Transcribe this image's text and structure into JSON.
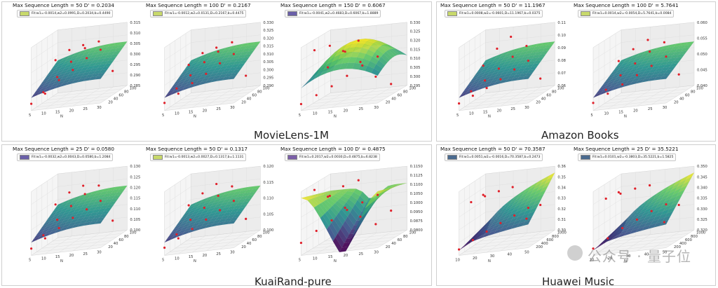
{
  "groups": [
    {
      "title": "MovieLens-1M"
    },
    {
      "title": "Amazon Books"
    },
    {
      "title": "KuaiRand-pure"
    },
    {
      "title": "Huawei Music"
    }
  ],
  "watermark": {
    "text": "公众号 · 量子位"
  },
  "chart_data": [
    {
      "type": "surface3d",
      "title": "Max Sequence Length = 50  D' = 0.2034",
      "legend": "Fit:w1=-0.0014,w2=0.0991,D=0.2034,b=0.4490",
      "colormap": "viridis",
      "x_ticks": [
        "5",
        "10",
        "15",
        "20",
        "25",
        "30"
      ],
      "x_label": "N",
      "y_ticks": [
        "20",
        "40",
        "60",
        "80",
        "100"
      ],
      "z_ticks": [
        "0.285",
        "0.290",
        "0.295",
        "0.300",
        "0.305",
        "0.310",
        "0.315"
      ],
      "surface_shape": "saddle",
      "points_z": [
        0.286,
        0.291,
        0.298,
        0.303,
        0.309,
        0.313,
        0.288,
        0.296,
        0.304,
        0.311,
        0.314,
        0.296,
        0.302,
        0.307,
        0.309
      ]
    },
    {
      "type": "surface3d",
      "title": "Max Sequence Length = 100  D' = 0.2167",
      "legend": "Fit:w1=-0.0012,w2=0.0131,D=0.2167,b=0.4475",
      "colormap": "viridis",
      "x_ticks": [
        "5",
        "10",
        "15",
        "20",
        "25",
        "30"
      ],
      "x_label": "N",
      "y_ticks": [
        "20",
        "40",
        "60",
        "80",
        "100"
      ],
      "z_ticks": [
        "0.290",
        "0.295",
        "0.300",
        "0.305",
        "0.310",
        "0.315",
        "0.320",
        "0.325",
        "0.330"
      ],
      "surface_shape": "saddle",
      "points_z": [
        0.292,
        0.298,
        0.305,
        0.311,
        0.318,
        0.324,
        0.297,
        0.306,
        0.315,
        0.322,
        0.328,
        0.301,
        0.309,
        0.317,
        0.32
      ]
    },
    {
      "type": "surface3d",
      "title": "Max Sequence Length = 150  D' = 0.6067",
      "legend": "Fit:w1=-0.0041,w2=0.4683,D=0.6067,b=1.8889",
      "colormap": "viridis",
      "x_ticks": [
        "5",
        "10",
        "15",
        "20",
        "25",
        "30"
      ],
      "x_label": "N",
      "y_ticks": [
        "20",
        "40",
        "60",
        "80",
        "100"
      ],
      "z_ticks": [
        "0.295",
        "0.300",
        "0.305",
        "0.310",
        "0.315",
        "0.320",
        "0.325",
        "0.330"
      ],
      "surface_shape": "dome",
      "points_z": [
        0.296,
        0.301,
        0.306,
        0.312,
        0.318,
        0.323,
        0.327,
        0.329,
        0.324,
        0.316,
        0.305,
        0.299,
        0.31,
        0.32,
        0.326
      ]
    },
    {
      "type": "surface3d",
      "title": "Max Sequence Length = 50  D' = 11.1967",
      "legend": "Fit:w1=0.0008,w2=-0.0601,D=11.1967,b=0.0375",
      "colormap": "viridis",
      "x_ticks": [
        "5",
        "10",
        "15",
        "20",
        "25",
        "30"
      ],
      "x_label": "N",
      "y_ticks": [
        "20",
        "40",
        "60",
        "80",
        "100"
      ],
      "z_ticks": [
        "0.06",
        "0.07",
        "0.08",
        "0.09",
        "0.10",
        "0.11"
      ],
      "surface_shape": "saddle",
      "points_z": [
        0.062,
        0.068,
        0.074,
        0.081,
        0.089,
        0.096,
        0.066,
        0.075,
        0.085,
        0.095,
        0.104,
        0.071,
        0.083,
        0.098,
        0.108
      ]
    },
    {
      "type": "surface3d",
      "title": "Max Sequence Length = 100  D' = 5.7641",
      "legend": "Fit:w1=0.0014,w2=-0.0054,D=5.7641,b=0.0084",
      "colormap": "viridis",
      "x_ticks": [
        "5",
        "10",
        "15",
        "20",
        "25",
        "30"
      ],
      "x_label": "N",
      "y_ticks": [
        "20",
        "40",
        "60",
        "80",
        "100"
      ],
      "z_ticks": [
        "0.040",
        "0.045",
        "0.050",
        "0.055",
        "0.060"
      ],
      "surface_shape": "saddle",
      "points_z": [
        0.041,
        0.044,
        0.047,
        0.05,
        0.053,
        0.056,
        0.043,
        0.048,
        0.052,
        0.056,
        0.059,
        0.046,
        0.051,
        0.055,
        0.058
      ]
    },
    {
      "type": "surface3d",
      "title": "Max Sequence Length = 25  D' = 0.0580",
      "legend": "Fit:w1=-0.0032,w2=0.0043,D=0.0580,b=1.2084",
      "colormap": "viridis",
      "x_ticks": [
        "5",
        "10",
        "15",
        "20",
        "25",
        "30"
      ],
      "x_label": "N",
      "y_ticks": [
        "20",
        "40",
        "60",
        "80",
        "100"
      ],
      "z_ticks": [
        "0.100",
        "0.105",
        "0.110",
        "0.115",
        "0.120",
        "0.125",
        "0.130"
      ],
      "surface_shape": "saddle",
      "points_z": [
        0.101,
        0.106,
        0.111,
        0.116,
        0.12,
        0.124,
        0.104,
        0.112,
        0.119,
        0.125,
        0.129,
        0.108,
        0.117,
        0.123,
        0.126
      ]
    },
    {
      "type": "surface3d",
      "title": "Max Sequence Length = 50  D' = 0.1317",
      "legend": "Fit:w1=-0.0013,w2=0.0027,D=0.1317,b=1.1131",
      "colormap": "viridis",
      "x_ticks": [
        "5",
        "10",
        "15",
        "20",
        "25",
        "30"
      ],
      "x_label": "N",
      "y_ticks": [
        "20",
        "40",
        "60",
        "80",
        "100"
      ],
      "z_ticks": [
        "0.100",
        "0.105",
        "0.110",
        "0.115",
        "0.120"
      ],
      "surface_shape": "saddle",
      "points_z": [
        0.101,
        0.104,
        0.107,
        0.11,
        0.113,
        0.116,
        0.103,
        0.108,
        0.112,
        0.116,
        0.119,
        0.106,
        0.111,
        0.115,
        0.118
      ]
    },
    {
      "type": "surface3d",
      "title": "Max Sequence Length = 100  D' = 0.4875",
      "legend": "Fit:w1=0.2017,w2=0.0030,D=0.4875,b=6.8238",
      "colormap": "viridis",
      "x_ticks": [
        "5",
        "10",
        "15",
        "20",
        "25",
        "30"
      ],
      "x_label": "N",
      "y_ticks": [
        "20",
        "40",
        "60",
        "80",
        "100"
      ],
      "z_ticks": [
        "0.0800",
        "0.0875",
        "0.0950",
        "0.1000",
        "0.1050",
        "0.1100",
        "0.1125",
        "0.1150"
      ],
      "surface_shape": "valley",
      "points_z": [
        0.085,
        0.092,
        0.098,
        0.104,
        0.108,
        0.112,
        0.115,
        0.11,
        0.101,
        0.094,
        0.088,
        0.096,
        0.105,
        0.111,
        0.114
      ]
    },
    {
      "type": "surface3d",
      "title": "Max Sequence Length = 50  D' = 70.3587",
      "legend": "Fit:w1=0.0051,w2=-0.0016,D=70.3587,b=0.2473",
      "colormap": "viridis",
      "x_ticks": [
        "10",
        "20",
        "30",
        "40",
        "50"
      ],
      "x_label": "N",
      "y_ticks": [
        "200",
        "400",
        "600",
        "800",
        "1000"
      ],
      "z_ticks": [
        "0.30",
        "0.31",
        "0.32",
        "0.33",
        "0.34",
        "0.35",
        "0.36"
      ],
      "surface_shape": "rise",
      "points_z": [
        0.301,
        0.31,
        0.318,
        0.326,
        0.333,
        0.34,
        0.346,
        0.351,
        0.355,
        0.358,
        0.32,
        0.334,
        0.345
      ]
    },
    {
      "type": "surface3d",
      "title": "Max Sequence Length = 25  D' = 35.5221",
      "legend": "Fit:w1=0.0101,w2=-0.3803,D=35.5221,b=1.5825",
      "colormap": "viridis",
      "x_ticks": [
        "10",
        "20",
        "30",
        "40",
        "50"
      ],
      "x_label": "N",
      "y_ticks": [
        "200",
        "400",
        "600",
        "800",
        "1000"
      ],
      "z_ticks": [
        "0.320",
        "0.325",
        "0.330",
        "0.335",
        "0.340",
        "0.345",
        "0.350"
      ],
      "surface_shape": "rise",
      "points_z": [
        0.321,
        0.326,
        0.331,
        0.335,
        0.339,
        0.342,
        0.345,
        0.347,
        0.349,
        0.35,
        0.328,
        0.337,
        0.344
      ]
    }
  ]
}
